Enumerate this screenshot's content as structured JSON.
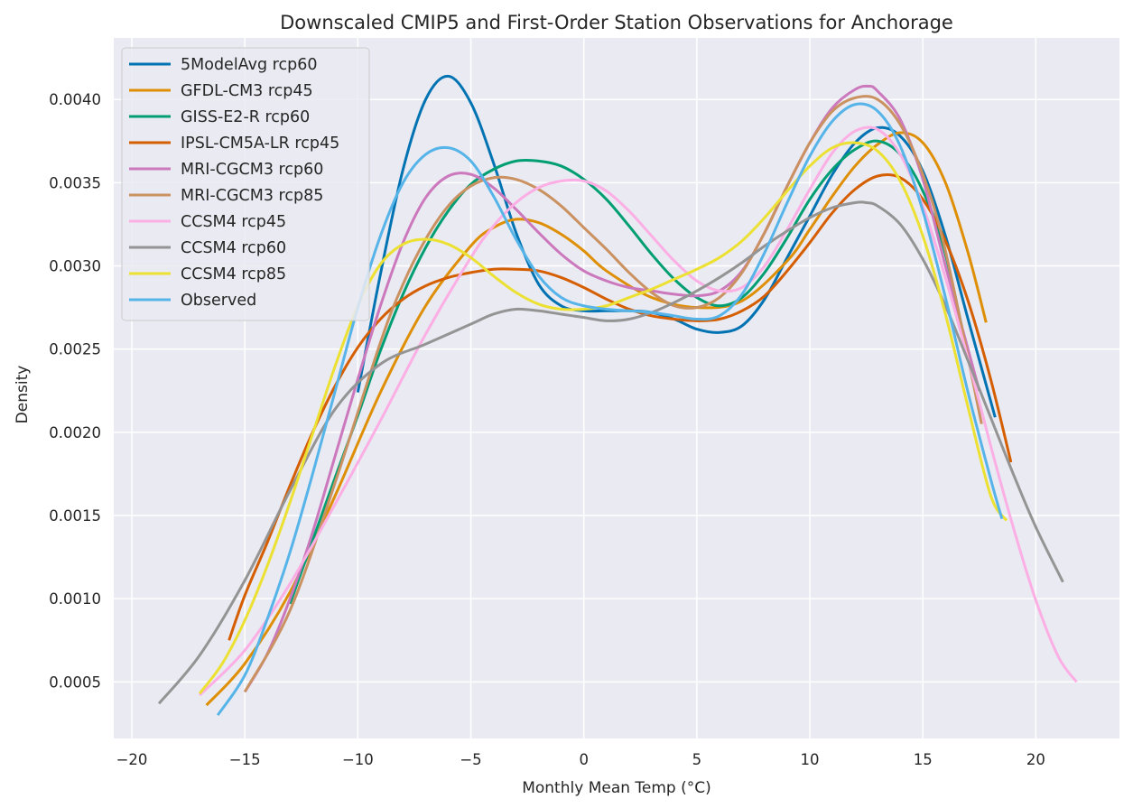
{
  "chart_data": {
    "type": "line",
    "title": "Downscaled CMIP5 and First-Order Station Observations for Anchorage",
    "xlabel": "Monthly Mean Temp (°C)",
    "ylabel": "Density",
    "xlim": [
      -20.8,
      23.7
    ],
    "ylim": [
      0.00016,
      0.00437
    ],
    "xticks": [
      -20,
      -15,
      -10,
      -5,
      0,
      5,
      10,
      15,
      20
    ],
    "xtick_labels": [
      "−20",
      "−15",
      "−10",
      "−5",
      "0",
      "5",
      "10",
      "15",
      "20"
    ],
    "yticks": [
      0.0005,
      0.001,
      0.0015,
      0.002,
      0.0025,
      0.003,
      0.0035,
      0.004
    ],
    "ytick_labels": [
      "0.0005",
      "0.0010",
      "0.0015",
      "0.0020",
      "0.0025",
      "0.0030",
      "0.0035",
      "0.0040"
    ],
    "grid": true,
    "legend_position": "top-left",
    "series": [
      {
        "name": "5ModelAvg rcp60",
        "color": "#0173b2",
        "x": [
          -10.0,
          -9,
          -8,
          -7,
          -6,
          -5,
          -4,
          -3,
          -2,
          -1,
          0,
          1,
          2,
          3,
          4,
          5,
          6,
          7,
          8,
          9,
          10,
          11,
          12,
          13,
          14,
          15,
          16,
          17,
          18.2
        ],
        "y": [
          0.00224,
          0.00295,
          0.00358,
          0.004,
          0.00414,
          0.00398,
          0.00362,
          0.0032,
          0.00289,
          0.00276,
          0.00273,
          0.00273,
          0.00273,
          0.00272,
          0.00268,
          0.00262,
          0.0026,
          0.00264,
          0.0028,
          0.00305,
          0.0033,
          0.00355,
          0.00374,
          0.00383,
          0.00378,
          0.00357,
          0.00318,
          0.00268,
          0.00209
        ]
      },
      {
        "name": "GFDL-CM3 rcp45",
        "color": "#de8f05",
        "x": [
          -16.7,
          -15,
          -13,
          -11,
          -9,
          -7,
          -5,
          -4,
          -3,
          -2,
          -1,
          0,
          1,
          3,
          5,
          7,
          9,
          10,
          11,
          12,
          13,
          14,
          15,
          16,
          17,
          17.8
        ],
        "y": [
          0.00036,
          0.00061,
          0.00104,
          0.00162,
          0.00224,
          0.00276,
          0.00312,
          0.00323,
          0.00328,
          0.00326,
          0.00319,
          0.00309,
          0.00297,
          0.00281,
          0.00275,
          0.00279,
          0.00303,
          0.00322,
          0.00342,
          0.0036,
          0.00373,
          0.0038,
          0.00374,
          0.0035,
          0.00308,
          0.00266
        ]
      },
      {
        "name": "GISS-E2-R rcp60",
        "color": "#029e73",
        "x": [
          -13.0,
          -12,
          -11,
          -10,
          -9,
          -8,
          -7,
          -6,
          -5,
          -4,
          -3,
          -2,
          -1,
          0,
          1,
          2,
          3,
          4,
          5,
          6,
          7,
          8,
          9,
          10,
          11,
          12,
          13,
          14,
          15,
          16,
          17.3
        ],
        "y": [
          0.00097,
          0.00135,
          0.00173,
          0.0021,
          0.00249,
          0.00283,
          0.00311,
          0.00333,
          0.00349,
          0.00358,
          0.00363,
          0.00363,
          0.0036,
          0.00352,
          0.0034,
          0.00324,
          0.00307,
          0.00292,
          0.00281,
          0.00276,
          0.00281,
          0.00296,
          0.00317,
          0.0034,
          0.00358,
          0.0037,
          0.00375,
          0.00367,
          0.00345,
          0.00307,
          0.00226
        ]
      },
      {
        "name": "IPSL-CM5A-LR rcp45",
        "color": "#d55e00",
        "x": [
          -15.7,
          -15,
          -14,
          -13,
          -12,
          -11,
          -10,
          -9,
          -8,
          -7,
          -6,
          -5,
          -4,
          -3,
          -2,
          -1,
          0,
          1,
          2,
          3,
          4,
          5,
          6,
          7,
          8,
          9,
          10,
          11,
          12,
          13,
          14,
          15,
          16,
          17,
          18,
          18.9
        ],
        "y": [
          0.00075,
          0.00102,
          0.00134,
          0.00168,
          0.002,
          0.00228,
          0.00251,
          0.00268,
          0.0028,
          0.00288,
          0.00293,
          0.00296,
          0.00298,
          0.00298,
          0.00297,
          0.00293,
          0.00287,
          0.0028,
          0.00274,
          0.0027,
          0.00268,
          0.00267,
          0.00268,
          0.00273,
          0.00282,
          0.00297,
          0.00314,
          0.00332,
          0.00346,
          0.00354,
          0.00353,
          0.0034,
          0.00315,
          0.00279,
          0.00232,
          0.00182
        ]
      },
      {
        "name": "MRI-CGCM3 rcp60",
        "color": "#cc78bc",
        "x": [
          -15.0,
          -14,
          -13,
          -12,
          -11,
          -10,
          -9,
          -8,
          -7,
          -6,
          -5,
          -4,
          -3,
          -2,
          -1,
          0,
          1,
          2,
          3,
          4,
          5,
          6,
          7,
          8,
          9,
          10,
          11,
          12,
          12.6,
          13,
          14,
          15,
          16,
          17.5
        ],
        "y": [
          0.00044,
          0.00067,
          0.001,
          0.0014,
          0.00186,
          0.00232,
          0.00276,
          0.00314,
          0.00341,
          0.00354,
          0.00355,
          0.00347,
          0.00334,
          0.0032,
          0.00307,
          0.00297,
          0.00291,
          0.00287,
          0.00285,
          0.00283,
          0.00282,
          0.00285,
          0.00297,
          0.0032,
          0.00348,
          0.00374,
          0.00395,
          0.00406,
          0.00408,
          0.00405,
          0.00388,
          0.00352,
          0.003,
          0.00225
        ]
      },
      {
        "name": "MRI-CGCM3 rcp85",
        "color": "#ca9161",
        "x": [
          -15.0,
          -13,
          -11,
          -9,
          -8,
          -7,
          -6,
          -5,
          -4,
          -3,
          -2,
          -1,
          0,
          1,
          2,
          3,
          4,
          5,
          6,
          7,
          8,
          9,
          10,
          11,
          12,
          13,
          14,
          15,
          16,
          17.6
        ],
        "y": [
          0.00044,
          0.00093,
          0.0017,
          0.00254,
          0.00289,
          0.00316,
          0.00336,
          0.00348,
          0.00353,
          0.00352,
          0.00346,
          0.00336,
          0.00323,
          0.0031,
          0.00296,
          0.00284,
          0.00276,
          0.00275,
          0.00281,
          0.00296,
          0.0032,
          0.00348,
          0.00374,
          0.00393,
          0.00401,
          0.004,
          0.00385,
          0.00355,
          0.00309,
          0.00205
        ]
      },
      {
        "name": "CCSM4 rcp45",
        "color": "#fbafe4",
        "x": [
          -17.0,
          -15,
          -13,
          -11,
          -9,
          -7,
          -5,
          -4,
          -3,
          -2,
          -1,
          0,
          1,
          2,
          3,
          4,
          5,
          6,
          7,
          8,
          9,
          10,
          11,
          12,
          13,
          14,
          15,
          16,
          17,
          18,
          19,
          20,
          21,
          21.8
        ],
        "y": [
          0.00042,
          0.00069,
          0.00109,
          0.00157,
          0.00207,
          0.00259,
          0.00305,
          0.00324,
          0.00338,
          0.00347,
          0.00351,
          0.00351,
          0.00345,
          0.00333,
          0.00318,
          0.00303,
          0.00291,
          0.00285,
          0.00287,
          0.003,
          0.00322,
          0.00346,
          0.00368,
          0.00381,
          0.00382,
          0.00367,
          0.00336,
          0.00293,
          0.00244,
          0.00192,
          0.00143,
          0.00099,
          0.00065,
          0.0005
        ]
      },
      {
        "name": "CCSM4 rcp60",
        "color": "#949494",
        "x": [
          -18.8,
          -17,
          -15,
          -13,
          -11,
          -9,
          -7,
          -5,
          -4,
          -3,
          -2,
          -1,
          0,
          1,
          2,
          3,
          4,
          5,
          6,
          7,
          8,
          9,
          10,
          11,
          12,
          12.5,
          13,
          14,
          15,
          16,
          17,
          18,
          19,
          20,
          21.2
        ],
        "y": [
          0.00037,
          0.00066,
          0.00111,
          0.00165,
          0.00214,
          0.00241,
          0.00253,
          0.00265,
          0.00271,
          0.00274,
          0.00273,
          0.00271,
          0.00269,
          0.00267,
          0.00268,
          0.00272,
          0.00278,
          0.00285,
          0.00293,
          0.00302,
          0.00312,
          0.00321,
          0.00329,
          0.00335,
          0.00338,
          0.00338,
          0.00336,
          0.00325,
          0.00304,
          0.00276,
          0.00243,
          0.00209,
          0.00175,
          0.00143,
          0.0011
        ]
      },
      {
        "name": "CCSM4 rcp85",
        "color": "#ece133",
        "x": [
          -17.0,
          -16,
          -15,
          -14,
          -13,
          -12,
          -11,
          -10,
          -9,
          -8,
          -7,
          -6,
          -5,
          -4,
          -3,
          -2,
          -1,
          0,
          1,
          2,
          3,
          4,
          5,
          6,
          7,
          8,
          9,
          10,
          11,
          12,
          13,
          14,
          15,
          16,
          17,
          18,
          18.7
        ],
        "y": [
          0.00043,
          0.00061,
          0.00087,
          0.0012,
          0.00158,
          0.00199,
          0.0024,
          0.00276,
          0.00301,
          0.00313,
          0.00316,
          0.00313,
          0.00305,
          0.00294,
          0.00284,
          0.00277,
          0.00274,
          0.00274,
          0.00276,
          0.00281,
          0.00286,
          0.00292,
          0.00298,
          0.00305,
          0.00315,
          0.00329,
          0.00345,
          0.0036,
          0.00371,
          0.00374,
          0.00369,
          0.00351,
          0.00318,
          0.00271,
          0.00215,
          0.00162,
          0.00147
        ]
      },
      {
        "name": "Observed",
        "color": "#56b4e9",
        "x": [
          -16.2,
          -15,
          -14,
          -13,
          -12,
          -11,
          -10,
          -9,
          -8,
          -7,
          -6,
          -5,
          -4,
          -3,
          -2,
          -1,
          0,
          1,
          2,
          3,
          4,
          5,
          6,
          7,
          8,
          9,
          10,
          11,
          12,
          13,
          14,
          15,
          16,
          17,
          18,
          18.5
        ],
        "y": [
          0.0003,
          0.00054,
          0.00088,
          0.00128,
          0.00175,
          0.00225,
          0.00275,
          0.00318,
          0.0035,
          0.00367,
          0.00371,
          0.00363,
          0.00342,
          0.00316,
          0.00294,
          0.00281,
          0.00276,
          0.00274,
          0.00273,
          0.00272,
          0.0027,
          0.00268,
          0.0027,
          0.00283,
          0.00308,
          0.00338,
          0.00366,
          0.00387,
          0.00397,
          0.00393,
          0.00372,
          0.00333,
          0.00281,
          0.00224,
          0.00172,
          0.00148
        ]
      }
    ]
  }
}
